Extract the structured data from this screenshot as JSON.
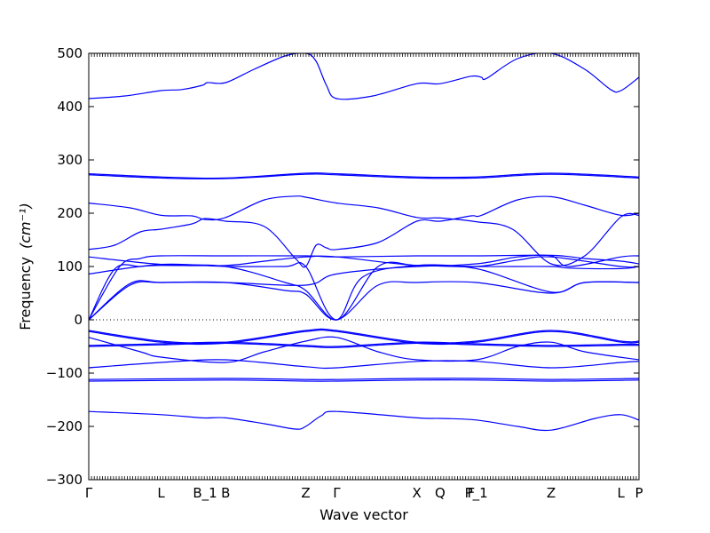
{
  "chart_data": {
    "type": "line",
    "title": "",
    "xlabel": "Wave vector",
    "ylabel": "Frequency",
    "ylabel_unit": "(cm⁻¹)",
    "ylim": [
      -300,
      500
    ],
    "yticks": [
      500,
      400,
      300,
      200,
      100,
      0,
      -100,
      -200,
      -300
    ],
    "grid": false,
    "line_color": "#0000ff",
    "zero_line_color": "#000000",
    "kpoints": [
      {
        "label": "Γ",
        "x": 0.0
      },
      {
        "label": "L",
        "x": 1.4
      },
      {
        "label": "B_1",
        "x": 2.25
      },
      {
        "label": "B",
        "x": 2.65
      },
      {
        "label": "Z",
        "x": 4.2
      },
      {
        "label": "Γ",
        "x": 4.8
      },
      {
        "label": "X",
        "x": 6.35
      },
      {
        "label": "Q",
        "x": 6.8
      },
      {
        "label": "F",
        "x": 7.4
      },
      {
        "label": "P_1",
        "x": 7.5
      },
      {
        "label": "Z",
        "x": 8.95
      },
      {
        "label": "L",
        "x": 10.3
      },
      {
        "label": "P",
        "x": 10.65
      }
    ],
    "series": [
      {
        "values": [
          [
            0,
            415
          ],
          [
            0.7,
            420
          ],
          [
            1.4,
            430
          ],
          [
            1.8,
            432
          ],
          [
            2.2,
            440
          ],
          [
            2.3,
            445
          ],
          [
            2.65,
            445
          ],
          [
            3.2,
            470
          ],
          [
            3.8,
            495
          ],
          [
            4.2,
            500
          ],
          [
            4.4,
            485
          ],
          [
            4.6,
            440
          ],
          [
            4.8,
            415
          ],
          [
            5.5,
            420
          ],
          [
            6.35,
            443
          ],
          [
            6.8,
            443
          ],
          [
            7.4,
            457
          ],
          [
            7.6,
            455
          ],
          [
            7.7,
            453
          ],
          [
            8.3,
            490
          ],
          [
            8.95,
            500
          ],
          [
            9.6,
            470
          ],
          [
            10.1,
            432
          ],
          [
            10.3,
            430
          ],
          [
            10.65,
            455
          ]
        ]
      },
      {
        "values": [
          [
            0,
            274
          ],
          [
            1.4,
            268
          ],
          [
            2.65,
            266
          ],
          [
            4.2,
            275
          ],
          [
            4.8,
            274
          ],
          [
            6.35,
            268
          ],
          [
            7.5,
            268
          ],
          [
            8.95,
            275
          ],
          [
            10.65,
            268
          ]
        ]
      },
      {
        "values": [
          [
            0,
            272
          ],
          [
            1.4,
            266
          ],
          [
            2.65,
            265
          ],
          [
            4.2,
            273
          ],
          [
            4.8,
            272
          ],
          [
            6.35,
            266
          ],
          [
            7.5,
            266
          ],
          [
            8.95,
            273
          ],
          [
            10.65,
            266
          ]
        ]
      },
      {
        "values": [
          [
            0,
            219
          ],
          [
            0.8,
            210
          ],
          [
            1.4,
            196
          ],
          [
            2.0,
            195
          ],
          [
            2.25,
            188
          ],
          [
            2.65,
            192
          ],
          [
            3.4,
            225
          ],
          [
            4.0,
            232
          ],
          [
            4.2,
            230
          ],
          [
            4.8,
            219
          ],
          [
            5.6,
            210
          ],
          [
            6.35,
            192
          ],
          [
            6.8,
            191
          ],
          [
            7.5,
            184
          ],
          [
            8.2,
            170
          ],
          [
            8.95,
            105
          ],
          [
            9.6,
            120
          ],
          [
            10.3,
            193
          ],
          [
            10.65,
            196
          ]
        ]
      },
      {
        "values": [
          [
            0,
            132
          ],
          [
            0.5,
            140
          ],
          [
            1.0,
            165
          ],
          [
            1.4,
            170
          ],
          [
            2.0,
            180
          ],
          [
            2.25,
            190
          ],
          [
            2.65,
            185
          ],
          [
            3.4,
            175
          ],
          [
            4.0,
            115
          ],
          [
            4.2,
            100
          ],
          [
            4.4,
            140
          ],
          [
            4.6,
            135
          ],
          [
            4.8,
            132
          ],
          [
            5.6,
            145
          ],
          [
            6.35,
            185
          ],
          [
            6.8,
            185
          ],
          [
            7.4,
            195
          ],
          [
            7.6,
            196
          ],
          [
            8.3,
            225
          ],
          [
            8.95,
            231
          ],
          [
            9.6,
            215
          ],
          [
            10.3,
            196
          ],
          [
            10.65,
            200
          ]
        ]
      },
      {
        "values": [
          [
            0,
            0
          ],
          [
            0.6,
            100
          ],
          [
            1.0,
            115
          ],
          [
            1.4,
            120
          ],
          [
            2.65,
            120
          ],
          [
            4.2,
            120
          ],
          [
            4.8,
            118
          ],
          [
            6.35,
            120
          ],
          [
            7.5,
            120
          ],
          [
            8.95,
            121
          ],
          [
            9.6,
            115
          ],
          [
            10.3,
            110
          ],
          [
            10.65,
            105
          ]
        ]
      },
      {
        "values": [
          [
            0,
            0
          ],
          [
            0.5,
            95
          ],
          [
            1.0,
            100
          ],
          [
            1.4,
            102
          ],
          [
            2.65,
            102
          ],
          [
            3.4,
            110
          ],
          [
            4.2,
            118
          ],
          [
            4.8,
            118
          ],
          [
            6.35,
            102
          ],
          [
            7.5,
            105
          ],
          [
            8.3,
            118
          ],
          [
            8.95,
            120
          ],
          [
            9.3,
            100
          ],
          [
            10.3,
            118
          ],
          [
            10.65,
            120
          ]
        ]
      },
      {
        "values": [
          [
            0,
            118
          ],
          [
            1.4,
            104
          ],
          [
            2.65,
            100
          ],
          [
            3.8,
            70
          ],
          [
            4.2,
            55
          ],
          [
            4.8,
            0
          ],
          [
            5.3,
            80
          ],
          [
            6.35,
            102
          ],
          [
            7.5,
            100
          ],
          [
            8.95,
            100
          ],
          [
            9.3,
            97
          ],
          [
            10.3,
            96
          ],
          [
            10.65,
            100
          ]
        ]
      },
      {
        "values": [
          [
            0,
            86
          ],
          [
            1.4,
            104
          ],
          [
            2.65,
            100
          ],
          [
            3.8,
            100
          ],
          [
            4.2,
            100
          ],
          [
            4.8,
            0
          ],
          [
            5.6,
            100
          ],
          [
            6.35,
            102
          ],
          [
            7.5,
            100
          ],
          [
            8.3,
            112
          ],
          [
            8.95,
            118
          ],
          [
            10.3,
            100
          ],
          [
            10.65,
            100
          ]
        ]
      },
      {
        "values": [
          [
            0,
            0
          ],
          [
            0.8,
            65
          ],
          [
            1.4,
            70
          ],
          [
            2.65,
            70
          ],
          [
            4.2,
            65
          ],
          [
            4.8,
            86
          ],
          [
            6.35,
            100
          ],
          [
            7.5,
            96
          ],
          [
            8.95,
            52
          ],
          [
            9.6,
            70
          ],
          [
            10.65,
            70
          ]
        ]
      },
      {
        "values": [
          [
            0,
            0
          ],
          [
            0.8,
            68
          ],
          [
            1.4,
            70
          ],
          [
            2.65,
            70
          ],
          [
            3.8,
            55
          ],
          [
            4.2,
            48
          ],
          [
            4.8,
            0
          ],
          [
            5.6,
            65
          ],
          [
            6.35,
            70
          ],
          [
            7.5,
            70
          ],
          [
            8.95,
            50
          ],
          [
            9.6,
            70
          ],
          [
            10.65,
            70
          ]
        ]
      },
      {
        "values": [
          [
            0,
            -20
          ],
          [
            1.4,
            -40
          ],
          [
            2.65,
            -42
          ],
          [
            4.2,
            -20
          ],
          [
            4.8,
            -20
          ],
          [
            6.35,
            -42
          ],
          [
            7.5,
            -40
          ],
          [
            8.95,
            -20
          ],
          [
            10.3,
            -40
          ],
          [
            10.65,
            -40
          ]
        ]
      },
      {
        "values": [
          [
            0,
            -22
          ],
          [
            1.4,
            -42
          ],
          [
            2.65,
            -44
          ],
          [
            4.2,
            -22
          ],
          [
            4.8,
            -22
          ],
          [
            6.35,
            -44
          ],
          [
            7.5,
            -42
          ],
          [
            8.95,
            -22
          ],
          [
            10.3,
            -42
          ],
          [
            10.65,
            -42
          ]
        ]
      },
      {
        "values": [
          [
            0,
            -33
          ],
          [
            1.0,
            -60
          ],
          [
            1.4,
            -70
          ],
          [
            2.65,
            -80
          ],
          [
            3.4,
            -60
          ],
          [
            4.2,
            -40
          ],
          [
            4.8,
            -33
          ],
          [
            5.6,
            -60
          ],
          [
            6.35,
            -75
          ],
          [
            7.5,
            -75
          ],
          [
            8.3,
            -50
          ],
          [
            8.95,
            -42
          ],
          [
            9.6,
            -60
          ],
          [
            10.65,
            -75
          ]
        ]
      },
      {
        "values": [
          [
            0,
            -48
          ],
          [
            1.4,
            -45
          ],
          [
            2.65,
            -42
          ],
          [
            4.2,
            -48
          ],
          [
            4.8,
            -50
          ],
          [
            6.35,
            -42
          ],
          [
            7.5,
            -45
          ],
          [
            8.95,
            -48
          ],
          [
            10.3,
            -46
          ],
          [
            10.65,
            -46
          ]
        ]
      },
      {
        "values": [
          [
            0,
            -50
          ],
          [
            1.4,
            -47
          ],
          [
            2.65,
            -44
          ],
          [
            4.2,
            -50
          ],
          [
            4.8,
            -52
          ],
          [
            6.35,
            -44
          ],
          [
            7.5,
            -47
          ],
          [
            8.95,
            -50
          ],
          [
            10.3,
            -48
          ],
          [
            10.65,
            -48
          ]
        ]
      },
      {
        "values": [
          [
            0,
            -90
          ],
          [
            1.4,
            -80
          ],
          [
            2.65,
            -75
          ],
          [
            4.2,
            -88
          ],
          [
            4.8,
            -90
          ],
          [
            6.35,
            -78
          ],
          [
            7.5,
            -78
          ],
          [
            8.95,
            -90
          ],
          [
            10.3,
            -80
          ],
          [
            10.65,
            -78
          ]
        ]
      },
      {
        "values": [
          [
            0,
            -112
          ],
          [
            2.65,
            -110
          ],
          [
            4.2,
            -112
          ],
          [
            4.8,
            -112
          ],
          [
            6.35,
            -110
          ],
          [
            7.5,
            -110
          ],
          [
            8.95,
            -112
          ],
          [
            10.65,
            -110
          ]
        ]
      },
      {
        "values": [
          [
            0,
            -115
          ],
          [
            2.65,
            -113
          ],
          [
            4.2,
            -115
          ],
          [
            4.8,
            -115
          ],
          [
            6.35,
            -113
          ],
          [
            7.5,
            -113
          ],
          [
            8.95,
            -115
          ],
          [
            10.65,
            -113
          ]
        ]
      },
      {
        "values": [
          [
            0,
            -172
          ],
          [
            1.4,
            -178
          ],
          [
            2.2,
            -184
          ],
          [
            2.65,
            -184
          ],
          [
            3.4,
            -195
          ],
          [
            4.0,
            -205
          ],
          [
            4.2,
            -200
          ],
          [
            4.5,
            -180
          ],
          [
            4.8,
            -172
          ],
          [
            6.35,
            -184
          ],
          [
            6.8,
            -185
          ],
          [
            7.5,
            -188
          ],
          [
            8.3,
            -200
          ],
          [
            8.95,
            -207
          ],
          [
            9.8,
            -185
          ],
          [
            10.3,
            -178
          ],
          [
            10.65,
            -188
          ]
        ]
      }
    ]
  }
}
